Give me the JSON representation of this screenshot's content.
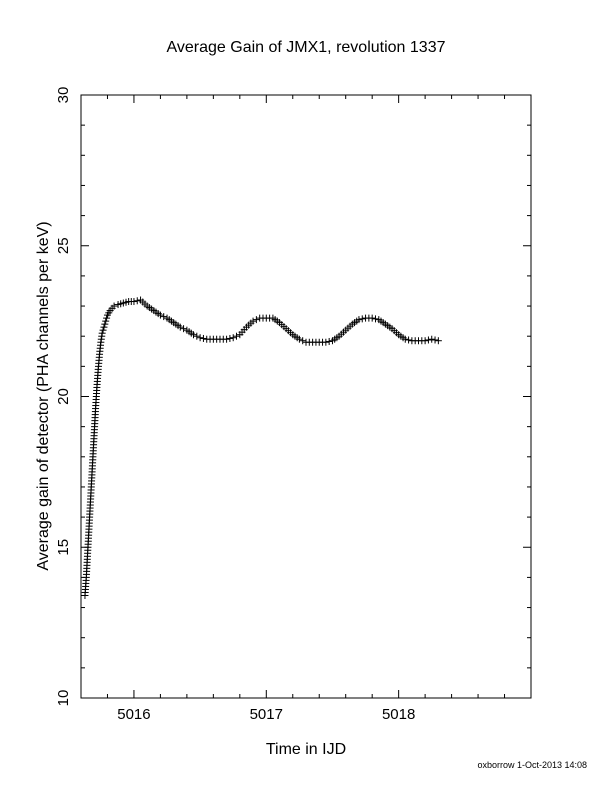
{
  "chart_data": {
    "type": "scatter",
    "title": "Average Gain of JMX1, revolution 1337",
    "xlabel": "Time in IJD",
    "ylabel": "Average gain of detector (PHA channels per keV)",
    "xlim": [
      5015.6,
      5019.0
    ],
    "ylim": [
      10,
      30
    ],
    "xticks": [
      5016,
      5017,
      5018
    ],
    "yticks": [
      10,
      15,
      20,
      25,
      30
    ],
    "marker": "+",
    "marker_color": "#000000",
    "grid": false,
    "series": [
      {
        "x": [
          5015.63,
          5015.64,
          5015.65,
          5015.66,
          5015.67,
          5015.68,
          5015.69,
          5015.7,
          5015.71,
          5015.72,
          5015.73,
          5015.74,
          5015.75,
          5015.76,
          5015.78,
          5015.8,
          5015.82,
          5015.85,
          5015.88,
          5015.92,
          5015.96,
          5016.0,
          5016.05,
          5016.1,
          5016.15,
          5016.2,
          5016.25,
          5016.3,
          5016.35,
          5016.4,
          5016.45,
          5016.5,
          5016.55,
          5016.6,
          5016.65,
          5016.7,
          5016.75,
          5016.8,
          5016.85,
          5016.9,
          5016.95,
          5017.0,
          5017.05,
          5017.1,
          5017.15,
          5017.2,
          5017.25,
          5017.3,
          5017.35,
          5017.4,
          5017.45,
          5017.5,
          5017.55,
          5017.6,
          5017.65,
          5017.7,
          5017.75,
          5017.8,
          5017.85,
          5017.9,
          5017.95,
          5018.0,
          5018.05,
          5018.1,
          5018.15,
          5018.2,
          5018.25,
          5018.3
        ],
        "y": [
          13.4,
          14.0,
          14.8,
          15.6,
          16.4,
          17.2,
          18.0,
          18.8,
          19.6,
          20.3,
          20.9,
          21.4,
          21.8,
          22.1,
          22.4,
          22.7,
          22.85,
          23.0,
          23.05,
          23.1,
          23.15,
          23.15,
          23.2,
          23.0,
          22.85,
          22.7,
          22.6,
          22.45,
          22.3,
          22.2,
          22.05,
          21.95,
          21.9,
          21.9,
          21.9,
          21.9,
          21.95,
          22.05,
          22.3,
          22.5,
          22.6,
          22.6,
          22.6,
          22.45,
          22.25,
          22.05,
          21.9,
          21.8,
          21.8,
          21.8,
          21.8,
          21.85,
          22.0,
          22.2,
          22.4,
          22.55,
          22.6,
          22.6,
          22.55,
          22.4,
          22.25,
          22.05,
          21.9,
          21.85,
          21.85,
          21.85,
          21.9,
          21.85
        ]
      }
    ]
  },
  "footer": {
    "credit": "oxborrow 1-Oct-2013 14:08"
  }
}
